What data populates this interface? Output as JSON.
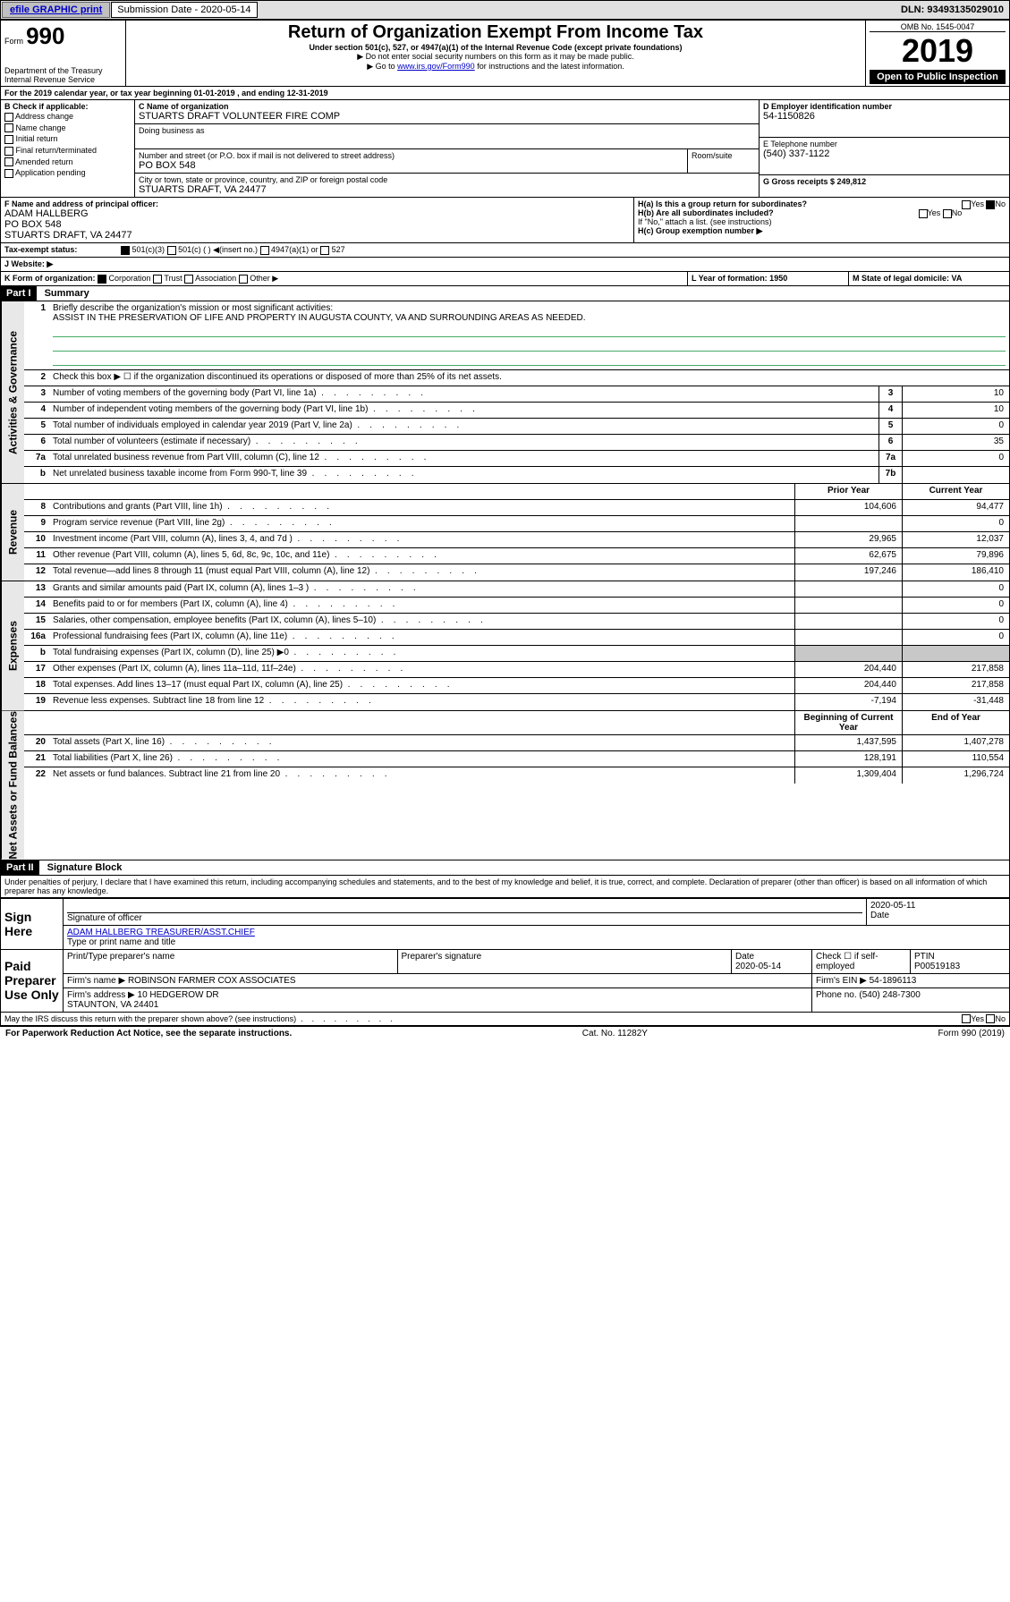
{
  "topbar": {
    "efile": "efile GRAPHIC print",
    "submission_label": "Submission Date - 2020-05-14",
    "dln": "DLN: 93493135029010"
  },
  "header": {
    "form_word": "Form",
    "form_num": "990",
    "dept": "Department of the Treasury\nInternal Revenue Service",
    "title": "Return of Organization Exempt From Income Tax",
    "sub1": "Under section 501(c), 527, or 4947(a)(1) of the Internal Revenue Code (except private foundations)",
    "sub2": "▶ Do not enter social security numbers on this form as it may be made public.",
    "sub3_pre": "▶ Go to ",
    "sub3_link": "www.irs.gov/Form990",
    "sub3_post": " for instructions and the latest information.",
    "omb": "OMB No. 1545-0047",
    "year": "2019",
    "open": "Open to Public Inspection"
  },
  "periodA": "For the 2019 calendar year, or tax year beginning 01-01-2019   , and ending 12-31-2019",
  "boxB": {
    "label": "B Check if applicable:",
    "opts": [
      "Address change",
      "Name change",
      "Initial return",
      "Final return/terminated",
      "Amended return",
      "Application pending"
    ]
  },
  "boxC": {
    "name_label": "C Name of organization",
    "name": "STUARTS DRAFT VOLUNTEER FIRE COMP",
    "dba_label": "Doing business as",
    "addr_label": "Number and street (or P.O. box if mail is not delivered to street address)",
    "room_label": "Room/suite",
    "addr": "PO BOX 548",
    "city_label": "City or town, state or province, country, and ZIP or foreign postal code",
    "city": "STUARTS DRAFT, VA  24477"
  },
  "boxD": {
    "label": "D Employer identification number",
    "val": "54-1150826"
  },
  "boxE": {
    "label": "E Telephone number",
    "val": "(540) 337-1122"
  },
  "boxG": {
    "label": "G Gross receipts $ 249,812"
  },
  "boxF": {
    "label": "F  Name and address of principal officer:",
    "name": "ADAM HALLBERG",
    "addr1": "PO BOX 548",
    "addr2": "STUARTS DRAFT, VA  24477"
  },
  "boxH": {
    "a": "H(a)  Is this a group return for subordinates?",
    "b": "H(b)  Are all subordinates included?",
    "b_note": "If \"No,\" attach a list. (see instructions)",
    "c": "H(c)  Group exemption number ▶",
    "yes": "Yes",
    "no": "No"
  },
  "boxI": {
    "label": "Tax-exempt status:",
    "o1": "501(c)(3)",
    "o2": "501(c) (  ) ◀(insert no.)",
    "o3": "4947(a)(1) or",
    "o4": "527"
  },
  "boxJ": {
    "label": "J    Website: ▶"
  },
  "boxK": {
    "label": "K Form of organization:",
    "o1": "Corporation",
    "o2": "Trust",
    "o3": "Association",
    "o4": "Other ▶"
  },
  "boxL": {
    "label": "L Year of formation: 1950"
  },
  "boxM": {
    "label": "M State of legal domicile: VA"
  },
  "part1": {
    "hdr": "Part I",
    "title": "Summary",
    "l1": "Briefly describe the organization's mission or most significant activities:",
    "mission": "ASSIST IN THE PRESERVATION OF LIFE AND PROPERTY IN AUGUSTA COUNTY, VA AND SURROUNDING AREAS AS NEEDED.",
    "l2": "Check this box ▶ ☐  if the organization discontinued its operations or disposed of more than 25% of its net assets.",
    "lines_gov": [
      {
        "n": "3",
        "d": "Number of voting members of the governing body (Part VI, line 1a)",
        "b": "3",
        "v": "10"
      },
      {
        "n": "4",
        "d": "Number of independent voting members of the governing body (Part VI, line 1b)",
        "b": "4",
        "v": "10"
      },
      {
        "n": "5",
        "d": "Total number of individuals employed in calendar year 2019 (Part V, line 2a)",
        "b": "5",
        "v": "0"
      },
      {
        "n": "6",
        "d": "Total number of volunteers (estimate if necessary)",
        "b": "6",
        "v": "35"
      },
      {
        "n": "7a",
        "d": "Total unrelated business revenue from Part VIII, column (C), line 12",
        "b": "7a",
        "v": "0"
      },
      {
        "n": "b",
        "d": "Net unrelated business taxable income from Form 990-T, line 39",
        "b": "7b",
        "v": ""
      }
    ],
    "hdr_prior": "Prior Year",
    "hdr_curr": "Current Year",
    "lines_rev": [
      {
        "n": "8",
        "d": "Contributions and grants (Part VIII, line 1h)",
        "p": "104,606",
        "c": "94,477"
      },
      {
        "n": "9",
        "d": "Program service revenue (Part VIII, line 2g)",
        "p": "",
        "c": "0"
      },
      {
        "n": "10",
        "d": "Investment income (Part VIII, column (A), lines 3, 4, and 7d )",
        "p": "29,965",
        "c": "12,037"
      },
      {
        "n": "11",
        "d": "Other revenue (Part VIII, column (A), lines 5, 6d, 8c, 9c, 10c, and 11e)",
        "p": "62,675",
        "c": "79,896"
      },
      {
        "n": "12",
        "d": "Total revenue—add lines 8 through 11 (must equal Part VIII, column (A), line 12)",
        "p": "197,246",
        "c": "186,410"
      }
    ],
    "lines_exp": [
      {
        "n": "13",
        "d": "Grants and similar amounts paid (Part IX, column (A), lines 1–3 )",
        "p": "",
        "c": "0"
      },
      {
        "n": "14",
        "d": "Benefits paid to or for members (Part IX, column (A), line 4)",
        "p": "",
        "c": "0"
      },
      {
        "n": "15",
        "d": "Salaries, other compensation, employee benefits (Part IX, column (A), lines 5–10)",
        "p": "",
        "c": "0"
      },
      {
        "n": "16a",
        "d": "Professional fundraising fees (Part IX, column (A), line 11e)",
        "p": "",
        "c": "0"
      },
      {
        "n": "b",
        "d": "Total fundraising expenses (Part IX, column (D), line 25) ▶0",
        "p": "grey",
        "c": "grey"
      },
      {
        "n": "17",
        "d": "Other expenses (Part IX, column (A), lines 11a–11d, 11f–24e)",
        "p": "204,440",
        "c": "217,858"
      },
      {
        "n": "18",
        "d": "Total expenses. Add lines 13–17 (must equal Part IX, column (A), line 25)",
        "p": "204,440",
        "c": "217,858"
      },
      {
        "n": "19",
        "d": "Revenue less expenses. Subtract line 18 from line 12",
        "p": "-7,194",
        "c": "-31,448"
      }
    ],
    "hdr_beg": "Beginning of Current Year",
    "hdr_end": "End of Year",
    "lines_net": [
      {
        "n": "20",
        "d": "Total assets (Part X, line 16)",
        "p": "1,437,595",
        "c": "1,407,278"
      },
      {
        "n": "21",
        "d": "Total liabilities (Part X, line 26)",
        "p": "128,191",
        "c": "110,554"
      },
      {
        "n": "22",
        "d": "Net assets or fund balances. Subtract line 21 from line 20",
        "p": "1,309,404",
        "c": "1,296,724"
      }
    ],
    "vert1": "Activities & Governance",
    "vert2": "Revenue",
    "vert3": "Expenses",
    "vert4": "Net Assets or Fund Balances"
  },
  "part2": {
    "hdr": "Part II",
    "title": "Signature Block",
    "decl": "Under penalties of perjury, I declare that I have examined this return, including accompanying schedules and statements, and to the best of my knowledge and belief, it is true, correct, and complete. Declaration of preparer (other than officer) is based on all information of which preparer has any knowledge.",
    "sign_here": "Sign Here",
    "sig_officer": "Signature of officer",
    "sig_date": "2020-05-11",
    "date_label": "Date",
    "officer_name": "ADAM HALLBERG  TREASURER/ASST.CHIEF",
    "type_name": "Type or print name and title",
    "paid": "Paid Preparer Use Only",
    "prep_name_label": "Print/Type preparer's name",
    "prep_sig_label": "Preparer's signature",
    "prep_date_label": "Date",
    "prep_date": "2020-05-14",
    "self_emp": "Check ☐ if self-employed",
    "ptin_label": "PTIN",
    "ptin": "P00519183",
    "firm_name_label": "Firm's name    ▶",
    "firm_name": "ROBINSON FARMER COX ASSOCIATES",
    "firm_ein_label": "Firm's EIN ▶",
    "firm_ein": "54-1896113",
    "firm_addr_label": "Firm's address ▶",
    "firm_addr1": "10 HEDGEROW DR",
    "firm_addr2": "STAUNTON, VA  24401",
    "firm_phone_label": "Phone no.",
    "firm_phone": "(540) 248-7300",
    "discuss": "May the IRS discuss this return with the preparer shown above? (see instructions)",
    "yes": "Yes",
    "no": "No"
  },
  "footer": {
    "left": "For Paperwork Reduction Act Notice, see the separate instructions.",
    "mid": "Cat. No. 11282Y",
    "right": "Form 990 (2019)"
  }
}
